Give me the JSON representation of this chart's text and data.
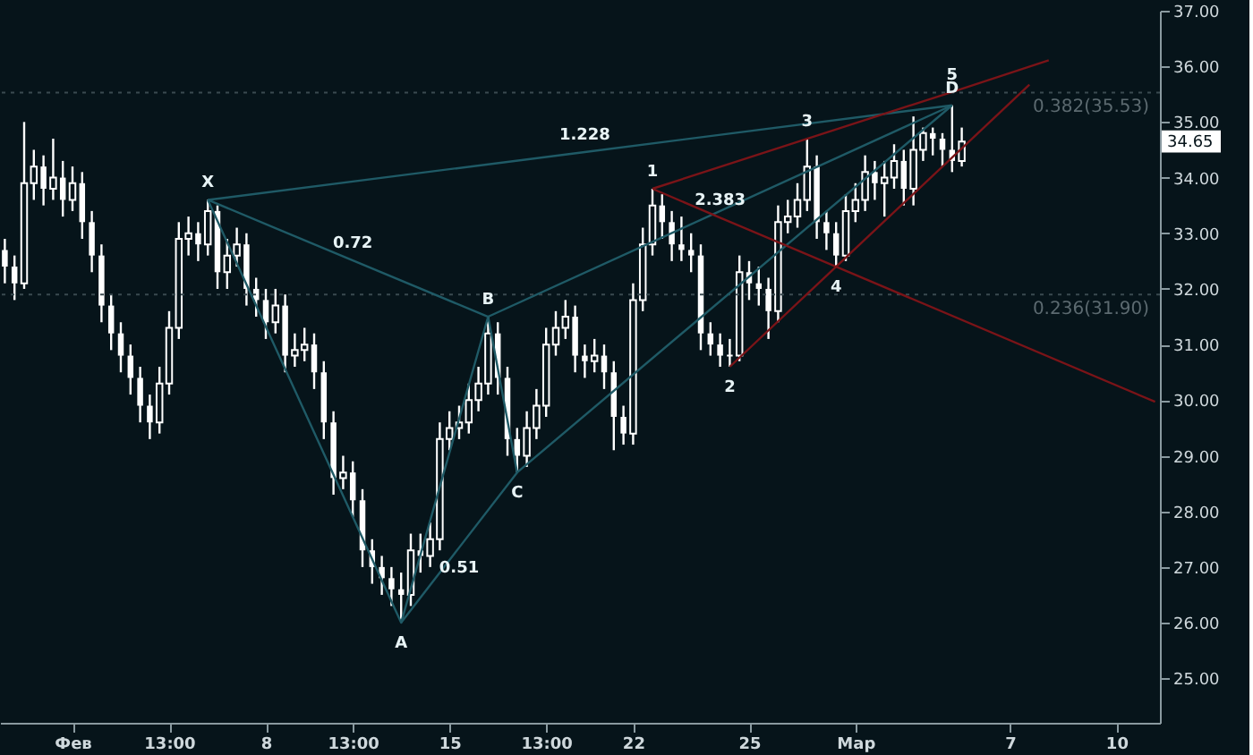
{
  "chart_data": {
    "type": "candlestick",
    "color": "#ffffff",
    "categories": [
      null,
      null,
      null,
      null,
      null,
      null,
      null,
      "Фев",
      null,
      null,
      null,
      null,
      null,
      null,
      null,
      null,
      null,
      "13:00",
      null,
      null,
      null,
      null,
      null,
      null,
      null,
      null,
      null,
      "8",
      null,
      null,
      null,
      null,
      null,
      null,
      null,
      null,
      "13:00",
      null,
      null,
      null,
      null,
      null,
      null,
      null,
      null,
      null,
      "15",
      null,
      null,
      null,
      null,
      null,
      null,
      null,
      null,
      null,
      "13:00",
      null,
      null,
      null,
      null,
      null,
      null,
      null,
      null,
      "22",
      null,
      null,
      null,
      null,
      null,
      null,
      null,
      null,
      null,
      null,
      null,
      "25",
      null,
      null,
      null,
      null,
      null,
      null,
      null,
      null,
      null,
      null,
      "Мар",
      null,
      null,
      null,
      null,
      null,
      null,
      null,
      null,
      null,
      null,
      null,
      null,
      null,
      null,
      null,
      "7",
      null,
      null,
      null,
      null,
      null,
      null,
      null,
      null,
      null,
      null,
      "10",
      null,
      null,
      null,
      null
    ],
    "ohlc": [
      [
        32.7,
        32.9,
        32.1,
        32.4
      ],
      [
        32.4,
        32.6,
        31.8,
        32.1
      ],
      [
        32.1,
        35.0,
        32.0,
        33.9
      ],
      [
        33.9,
        34.5,
        33.6,
        34.2
      ],
      [
        34.2,
        34.4,
        33.5,
        33.8
      ],
      [
        33.8,
        34.7,
        33.6,
        34.0
      ],
      [
        34.0,
        34.3,
        33.3,
        33.6
      ],
      [
        33.6,
        34.2,
        33.4,
        33.9
      ],
      [
        33.9,
        34.1,
        32.9,
        33.2
      ],
      [
        33.2,
        33.4,
        32.3,
        32.6
      ],
      [
        32.6,
        32.8,
        31.4,
        31.7
      ],
      [
        31.7,
        31.9,
        30.9,
        31.2
      ],
      [
        31.2,
        31.4,
        30.5,
        30.8
      ],
      [
        30.8,
        31.0,
        30.1,
        30.4
      ],
      [
        30.4,
        30.6,
        29.6,
        29.9
      ],
      [
        29.9,
        30.1,
        29.3,
        29.6
      ],
      [
        29.6,
        30.6,
        29.4,
        30.3
      ],
      [
        30.3,
        31.6,
        30.1,
        31.3
      ],
      [
        31.3,
        33.2,
        31.1,
        32.9
      ],
      [
        32.9,
        33.3,
        32.6,
        33.0
      ],
      [
        33.0,
        33.2,
        32.5,
        32.8
      ],
      [
        32.8,
        33.6,
        32.6,
        33.4
      ],
      [
        33.4,
        33.5,
        32.0,
        32.3
      ],
      [
        32.3,
        32.9,
        32.0,
        32.6
      ],
      [
        32.6,
        33.1,
        32.4,
        32.8
      ],
      [
        32.8,
        33.0,
        31.7,
        32.0
      ],
      [
        32.0,
        32.2,
        31.5,
        31.8
      ],
      [
        31.8,
        32.0,
        31.1,
        31.4
      ],
      [
        31.4,
        32.0,
        31.2,
        31.7
      ],
      [
        31.7,
        31.9,
        30.5,
        30.8
      ],
      [
        30.8,
        31.2,
        30.6,
        30.9
      ],
      [
        30.9,
        31.3,
        30.7,
        31.0
      ],
      [
        31.0,
        31.2,
        30.2,
        30.5
      ],
      [
        30.5,
        30.7,
        29.3,
        29.6
      ],
      [
        29.6,
        29.8,
        28.3,
        28.6
      ],
      [
        28.6,
        29.0,
        28.4,
        28.7
      ],
      [
        28.7,
        28.9,
        27.9,
        28.2
      ],
      [
        28.2,
        28.4,
        27.0,
        27.3
      ],
      [
        27.3,
        27.5,
        26.7,
        27.0
      ],
      [
        27.0,
        27.2,
        26.5,
        26.8
      ],
      [
        26.8,
        27.0,
        26.3,
        26.6
      ],
      [
        26.6,
        26.9,
        26.0,
        26.5
      ],
      [
        26.5,
        27.6,
        26.3,
        27.3
      ],
      [
        27.3,
        27.6,
        26.9,
        27.2
      ],
      [
        27.2,
        27.8,
        27.0,
        27.5
      ],
      [
        27.5,
        29.6,
        27.3,
        29.3
      ],
      [
        29.3,
        29.8,
        29.1,
        29.5
      ],
      [
        29.5,
        29.9,
        29.3,
        29.6
      ],
      [
        29.6,
        30.3,
        29.4,
        30.0
      ],
      [
        30.0,
        30.6,
        29.8,
        30.3
      ],
      [
        30.3,
        31.5,
        30.1,
        31.2
      ],
      [
        31.2,
        31.4,
        30.1,
        30.4
      ],
      [
        30.4,
        30.6,
        29.0,
        29.3
      ],
      [
        29.3,
        29.5,
        28.7,
        29.0
      ],
      [
        29.0,
        29.8,
        28.8,
        29.5
      ],
      [
        29.5,
        30.2,
        29.3,
        29.9
      ],
      [
        29.9,
        31.3,
        29.7,
        31.0
      ],
      [
        31.0,
        31.6,
        30.8,
        31.3
      ],
      [
        31.3,
        31.8,
        31.1,
        31.5
      ],
      [
        31.5,
        31.7,
        30.5,
        30.8
      ],
      [
        30.8,
        31.0,
        30.4,
        30.7
      ],
      [
        30.7,
        31.1,
        30.5,
        30.8
      ],
      [
        30.8,
        31.0,
        30.2,
        30.5
      ],
      [
        30.5,
        30.7,
        29.1,
        29.7
      ],
      [
        29.7,
        29.9,
        29.2,
        29.4
      ],
      [
        29.4,
        32.1,
        29.2,
        31.8
      ],
      [
        31.8,
        33.1,
        31.6,
        32.8
      ],
      [
        32.8,
        33.8,
        32.6,
        33.5
      ],
      [
        33.5,
        33.7,
        32.9,
        33.2
      ],
      [
        33.2,
        33.4,
        32.5,
        32.8
      ],
      [
        32.8,
        33.3,
        32.5,
        32.7
      ],
      [
        32.7,
        33.0,
        32.3,
        32.6
      ],
      [
        32.6,
        32.8,
        30.9,
        31.2
      ],
      [
        31.2,
        31.4,
        30.8,
        31.0
      ],
      [
        31.0,
        31.2,
        30.6,
        30.8
      ],
      [
        30.8,
        31.1,
        30.6,
        30.8
      ],
      [
        30.8,
        32.6,
        30.7,
        32.3
      ],
      [
        32.3,
        32.5,
        31.8,
        32.1
      ],
      [
        32.1,
        32.4,
        31.7,
        32.0
      ],
      [
        32.0,
        32.2,
        31.1,
        31.6
      ],
      [
        31.6,
        33.5,
        31.4,
        33.2
      ],
      [
        33.2,
        33.6,
        33.0,
        33.3
      ],
      [
        33.3,
        33.9,
        33.1,
        33.6
      ],
      [
        33.6,
        34.7,
        33.4,
        34.2
      ],
      [
        34.2,
        34.4,
        32.9,
        33.2
      ],
      [
        33.2,
        33.4,
        32.7,
        33.0
      ],
      [
        33.0,
        33.2,
        32.4,
        32.6
      ],
      [
        32.6,
        33.7,
        32.5,
        33.4
      ],
      [
        33.4,
        33.9,
        33.2,
        33.6
      ],
      [
        33.6,
        34.4,
        33.4,
        34.1
      ],
      [
        34.1,
        34.3,
        33.6,
        33.9
      ],
      [
        33.9,
        34.3,
        33.3,
        34.0
      ],
      [
        34.0,
        34.6,
        33.8,
        34.3
      ],
      [
        34.3,
        34.5,
        33.5,
        33.8
      ],
      [
        33.8,
        35.1,
        33.5,
        34.5
      ],
      [
        34.5,
        34.9,
        34.3,
        34.8
      ],
      [
        34.8,
        34.9,
        34.4,
        34.7
      ],
      [
        34.7,
        34.8,
        34.2,
        34.5
      ],
      [
        34.5,
        35.3,
        34.1,
        34.3
      ],
      [
        34.3,
        34.9,
        34.2,
        34.65
      ],
      null,
      null,
      null,
      null,
      null,
      null,
      null,
      null,
      null,
      null,
      null,
      null,
      null,
      null,
      null,
      null,
      null,
      null,
      null,
      null
    ],
    "ylim": [
      24.2,
      37.0
    ],
    "yticks": [
      {
        "value": 25,
        "label": "25.00"
      },
      {
        "value": 26,
        "label": "26.00"
      },
      {
        "value": 27,
        "label": "27.00"
      },
      {
        "value": 28,
        "label": "28.00"
      },
      {
        "value": 29,
        "label": "29.00"
      },
      {
        "value": 30,
        "label": "30.00"
      },
      {
        "value": 31,
        "label": "31.00"
      },
      {
        "value": 32,
        "label": "32.00"
      },
      {
        "value": 33,
        "label": "33.00"
      },
      {
        "value": 34,
        "label": "34.00"
      },
      {
        "value": 35,
        "label": "35.00"
      },
      {
        "value": 36,
        "label": "36.00"
      },
      {
        "value": 37,
        "label": "37.00"
      }
    ],
    "series": [
      {
        "type": "line",
        "color": "#1f5a66",
        "values": [
          null,
          null,
          null,
          null,
          null,
          null,
          null,
          null,
          null,
          null,
          null,
          null,
          null,
          null,
          null,
          null,
          null,
          null,
          null,
          null,
          null,
          33.6,
          null,
          null,
          null,
          null,
          null,
          null,
          null,
          null,
          null,
          null,
          null,
          null,
          null,
          null,
          null,
          null,
          null,
          null,
          null,
          26.0,
          null,
          null,
          null,
          null,
          null,
          null,
          null,
          null,
          31.5,
          null,
          null,
          28.7,
          null,
          null,
          null,
          null,
          null,
          null,
          null,
          null,
          null,
          null,
          null,
          null,
          null,
          null,
          null,
          null,
          null,
          null,
          null,
          null,
          null,
          null,
          null,
          null,
          null,
          null,
          null,
          null,
          null,
          null,
          null,
          null,
          null,
          null,
          null,
          null,
          null,
          null,
          null,
          null,
          null,
          null,
          null,
          null,
          35.3,
          null,
          null,
          null,
          null,
          null,
          null,
          null,
          null,
          null,
          null,
          null,
          null,
          null,
          null,
          null,
          null,
          null,
          null,
          null,
          null,
          null
        ]
      },
      {
        "type": "line",
        "color": "#1f5a66",
        "values": [
          null,
          null,
          null,
          null,
          null,
          null,
          null,
          null,
          null,
          null,
          null,
          null,
          null,
          null,
          null,
          null,
          null,
          null,
          null,
          null,
          null,
          33.6,
          null,
          null,
          null,
          null,
          null,
          null,
          null,
          null,
          null,
          null,
          null,
          null,
          null,
          null,
          32.51,
          null,
          null,
          null,
          null,
          null,
          null,
          null,
          null,
          null,
          null,
          null,
          null,
          null,
          31.5,
          null,
          null,
          null,
          null,
          null,
          null,
          null,
          null,
          null,
          null,
          null,
          null,
          null,
          null,
          null,
          null,
          null,
          null,
          null,
          null,
          null,
          null,
          null,
          null,
          null,
          null,
          null,
          null,
          null,
          null,
          null,
          null,
          null,
          null,
          null,
          null,
          null,
          null,
          null,
          null,
          null,
          null,
          null,
          null,
          null,
          null,
          null,
          null,
          null,
          null,
          null,
          null,
          null,
          null,
          null,
          null,
          null,
          null,
          null,
          null,
          null,
          null,
          null,
          null,
          null,
          null,
          null,
          null,
          null
        ]
      },
      {
        "type": "line",
        "color": "#1f5a66",
        "values": [
          null,
          null,
          null,
          null,
          null,
          null,
          null,
          null,
          null,
          null,
          null,
          null,
          null,
          null,
          null,
          null,
          null,
          null,
          null,
          null,
          null,
          null,
          null,
          null,
          null,
          null,
          null,
          null,
          null,
          null,
          null,
          null,
          null,
          null,
          null,
          null,
          null,
          null,
          null,
          null,
          null,
          26.0,
          null,
          null,
          null,
          null,
          null,
          27.35,
          null,
          null,
          null,
          null,
          null,
          28.7,
          null,
          null,
          null,
          null,
          null,
          null,
          null,
          null,
          null,
          null,
          null,
          null,
          null,
          null,
          null,
          null,
          null,
          null,
          null,
          null,
          null,
          null,
          null,
          null,
          null,
          null,
          null,
          null,
          null,
          null,
          null,
          null,
          null,
          null,
          null,
          null,
          null,
          null,
          null,
          null,
          null,
          null,
          null,
          null,
          null,
          null,
          null,
          null,
          null,
          null,
          null,
          null,
          null,
          null,
          null,
          null,
          null,
          null,
          null,
          null,
          null,
          null,
          null,
          null,
          null,
          null
        ]
      },
      {
        "type": "line",
        "color": "#1f5a66",
        "values": [
          null,
          null,
          null,
          null,
          null,
          null,
          null,
          null,
          null,
          null,
          null,
          null,
          null,
          null,
          null,
          null,
          null,
          null,
          null,
          null,
          null,
          null,
          null,
          null,
          null,
          null,
          null,
          null,
          null,
          null,
          null,
          null,
          null,
          null,
          null,
          null,
          null,
          null,
          null,
          null,
          null,
          null,
          null,
          null,
          null,
          null,
          null,
          null,
          null,
          null,
          31.5,
          null,
          null,
          null,
          null,
          null,
          null,
          null,
          null,
          null,
          null,
          null,
          null,
          null,
          null,
          null,
          null,
          null,
          null,
          null,
          null,
          null,
          null,
          null,
          null,
          null,
          null,
          null,
          null,
          null,
          null,
          null,
          null,
          null,
          null,
          null,
          null,
          null,
          null,
          null,
          null,
          null,
          null,
          null,
          null,
          null,
          null,
          null,
          35.3,
          null,
          null,
          null,
          null,
          null,
          null,
          null,
          null,
          null,
          null,
          null,
          null,
          null,
          null,
          null,
          null,
          null,
          null,
          null,
          null,
          null
        ]
      },
      {
        "type": "line",
        "color": "#1f5a66",
        "values": [
          null,
          null,
          null,
          null,
          null,
          null,
          null,
          null,
          null,
          null,
          null,
          null,
          null,
          null,
          null,
          null,
          null,
          null,
          null,
          null,
          null,
          33.6,
          null,
          null,
          null,
          null,
          null,
          null,
          null,
          null,
          null,
          null,
          null,
          null,
          null,
          null,
          null,
          null,
          null,
          null,
          null,
          null,
          null,
          null,
          null,
          null,
          null,
          null,
          null,
          null,
          null,
          null,
          null,
          null,
          null,
          null,
          null,
          null,
          null,
          null,
          34.46,
          null,
          null,
          null,
          null,
          null,
          null,
          null,
          null,
          null,
          null,
          null,
          null,
          null,
          null,
          null,
          null,
          null,
          null,
          null,
          null,
          null,
          null,
          null,
          null,
          null,
          null,
          null,
          null,
          null,
          null,
          null,
          null,
          null,
          null,
          null,
          null,
          null,
          35.3,
          null,
          null,
          null,
          null,
          null,
          null,
          null,
          null,
          null,
          null,
          null,
          null,
          null,
          null,
          null,
          null,
          null,
          null,
          null,
          null,
          null
        ]
      },
      {
        "type": "line",
        "color": "#7a1418",
        "values": [
          null,
          null,
          null,
          null,
          null,
          null,
          null,
          null,
          null,
          null,
          null,
          null,
          null,
          null,
          null,
          null,
          null,
          null,
          null,
          null,
          null,
          null,
          null,
          null,
          null,
          null,
          null,
          null,
          null,
          null,
          null,
          null,
          null,
          null,
          null,
          null,
          null,
          null,
          null,
          null,
          null,
          null,
          null,
          null,
          null,
          null,
          null,
          null,
          null,
          null,
          null,
          null,
          null,
          null,
          null,
          null,
          null,
          null,
          null,
          null,
          null,
          null,
          null,
          null,
          null,
          null,
          null,
          33.8,
          null,
          null,
          null,
          null,
          null,
          null,
          null,
          null,
          null,
          null,
          null,
          null,
          null,
          null,
          null,
          34.7,
          null,
          null,
          null,
          null,
          null,
          null,
          null,
          null,
          null,
          null,
          null,
          null,
          null,
          null,
          35.54,
          null,
          null,
          null,
          null,
          null,
          null,
          null,
          null,
          null,
          36.11,
          null,
          null,
          null,
          null,
          null,
          null,
          null,
          null,
          null,
          null,
          null
        ]
      },
      {
        "type": "line",
        "color": "#7a1418",
        "values": [
          null,
          null,
          null,
          null,
          null,
          null,
          null,
          null,
          null,
          null,
          null,
          null,
          null,
          null,
          null,
          null,
          null,
          null,
          null,
          null,
          null,
          null,
          null,
          null,
          null,
          null,
          null,
          null,
          null,
          null,
          null,
          null,
          null,
          null,
          null,
          null,
          null,
          null,
          null,
          null,
          null,
          null,
          null,
          null,
          null,
          null,
          null,
          null,
          null,
          null,
          null,
          null,
          null,
          null,
          null,
          null,
          null,
          null,
          null,
          null,
          null,
          null,
          null,
          null,
          null,
          null,
          null,
          null,
          null,
          null,
          null,
          null,
          null,
          null,
          null,
          30.6,
          null,
          null,
          null,
          null,
          null,
          null,
          null,
          null,
          null,
          null,
          32.4,
          null,
          null,
          null,
          null,
          null,
          null,
          null,
          null,
          null,
          null,
          null,
          null,
          null,
          null,
          null,
          null,
          null,
          null,
          null,
          35.67,
          null,
          null,
          null,
          null,
          null,
          null,
          null,
          null,
          null,
          null,
          null,
          null,
          null
        ]
      },
      {
        "type": "line",
        "color": "#7a1418",
        "values": [
          null,
          null,
          null,
          null,
          null,
          null,
          null,
          null,
          null,
          null,
          null,
          null,
          null,
          null,
          null,
          null,
          null,
          null,
          null,
          null,
          null,
          null,
          null,
          null,
          null,
          null,
          null,
          null,
          null,
          null,
          null,
          null,
          null,
          null,
          null,
          null,
          null,
          null,
          null,
          null,
          null,
          null,
          null,
          null,
          null,
          null,
          null,
          null,
          null,
          null,
          null,
          null,
          null,
          null,
          null,
          null,
          null,
          null,
          null,
          null,
          null,
          null,
          null,
          null,
          null,
          null,
          null,
          33.8,
          null,
          null,
          null,
          null,
          null,
          null,
          33.28,
          null,
          null,
          null,
          null,
          null,
          null,
          null,
          null,
          null,
          null,
          null,
          32.4,
          null,
          null,
          null,
          null,
          null,
          null,
          null,
          null,
          null,
          null,
          null,
          null,
          null,
          null,
          null,
          null,
          null,
          null,
          null,
          null,
          null,
          null,
          null,
          null,
          null,
          null,
          null,
          null,
          null,
          null,
          null,
          null,
          29.97
        ]
      }
    ],
    "ref_lines": [
      {
        "axis": "y",
        "value": 35.53,
        "label": "0.382(35.53)",
        "color": "#3a4a50",
        "line_style": "dotted"
      },
      {
        "axis": "y",
        "value": 31.9,
        "label": "0.236(31.90)",
        "color": "#3a4a50",
        "line_style": "dotted"
      }
    ],
    "annotations": [
      {
        "text": "X",
        "y": 33.6
      },
      {
        "text": "A",
        "y": 26.0
      },
      {
        "text": "B",
        "y": 31.5
      },
      {
        "text": "C",
        "y": 28.7
      },
      {
        "text": "D",
        "y": 35.3
      },
      {
        "text": "0.72",
        "y": 32.51
      },
      {
        "text": "0.51",
        "y": 27.35
      },
      {
        "text": "1.228",
        "y": 34.46
      },
      {
        "text": "2.383",
        "y": 33.28
      },
      {
        "text": "1",
        "y": 33.8
      },
      {
        "text": "2",
        "y": 30.6
      },
      {
        "text": "3",
        "y": 34.7
      },
      {
        "text": "4",
        "y": 32.4
      },
      {
        "text": "5",
        "y": 35.54
      },
      {
        "text": "34.65",
        "y": 34.65
      }
    ]
  }
}
